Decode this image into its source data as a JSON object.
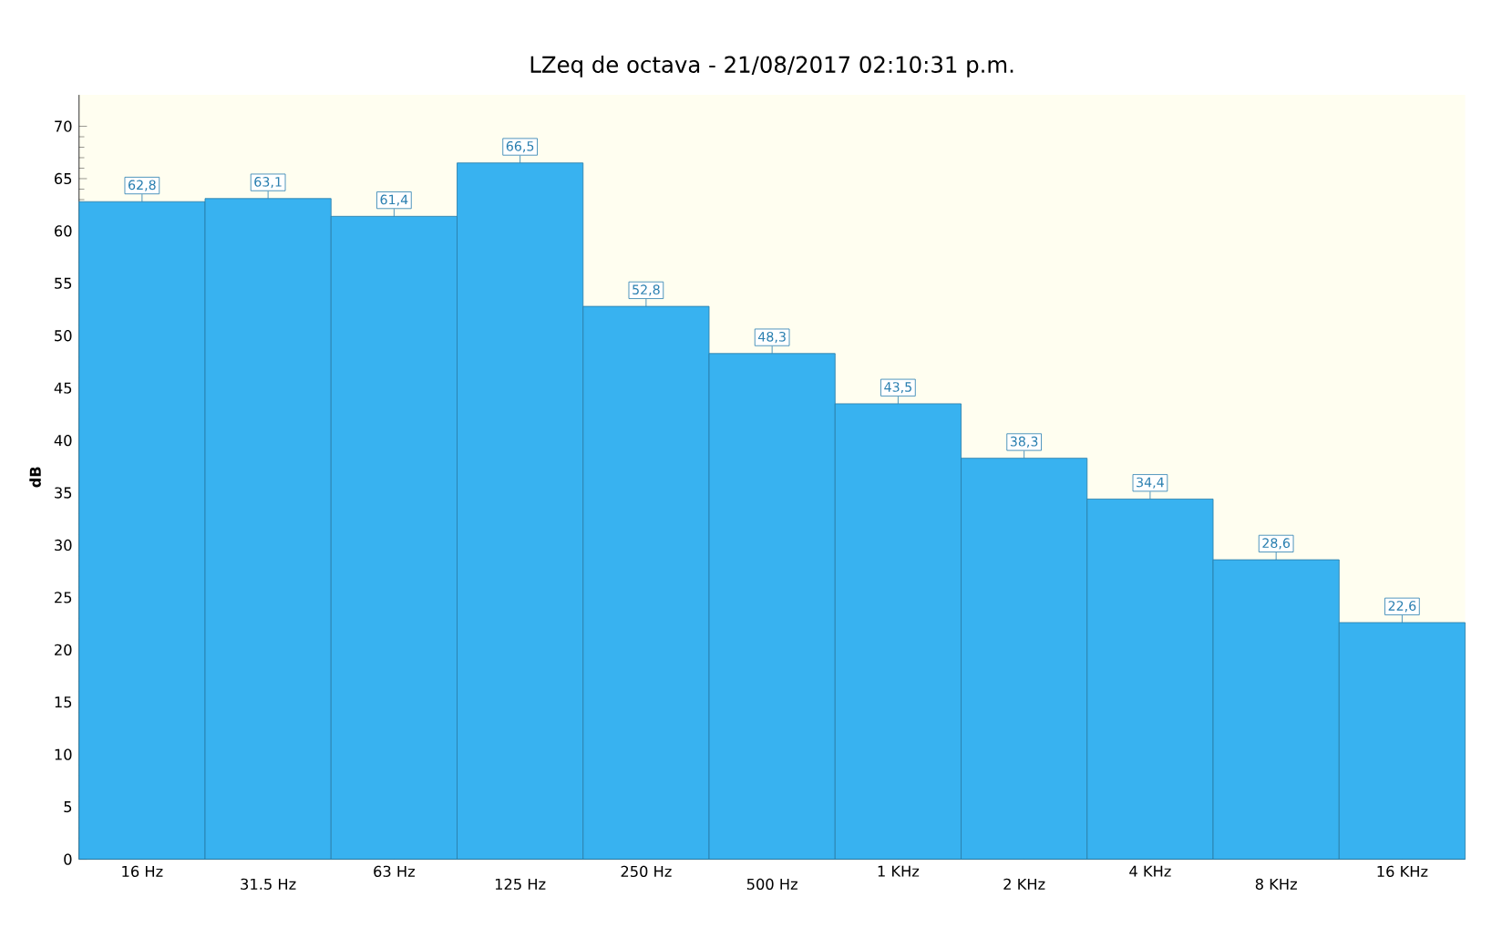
{
  "chart_data": {
    "type": "bar",
    "title": "LZeq de octava  -  21/08/2017 02:10:31 p.m.",
    "ylabel": "dB",
    "categories": [
      "16 Hz",
      "31.5 Hz",
      "63 Hz",
      "125 Hz",
      "250 Hz",
      "500 Hz",
      "1 KHz",
      "2 KHz",
      "4 KHz",
      "8 KHz",
      "16 KHz"
    ],
    "values": [
      62.8,
      63.1,
      61.4,
      66.5,
      52.8,
      48.3,
      43.5,
      38.3,
      34.4,
      28.6,
      22.6
    ],
    "value_labels": [
      "62,8",
      "63,1",
      "61,4",
      "66,5",
      "52,8",
      "48,3",
      "43,5",
      "38,3",
      "34,4",
      "28,6",
      "22,6"
    ],
    "color": "#38b2f0",
    "ylim": [
      0,
      73
    ],
    "yticks": [
      0,
      5,
      10,
      15,
      20,
      25,
      30,
      35,
      40,
      45,
      50,
      55,
      60,
      65,
      70
    ],
    "grid": false
  }
}
